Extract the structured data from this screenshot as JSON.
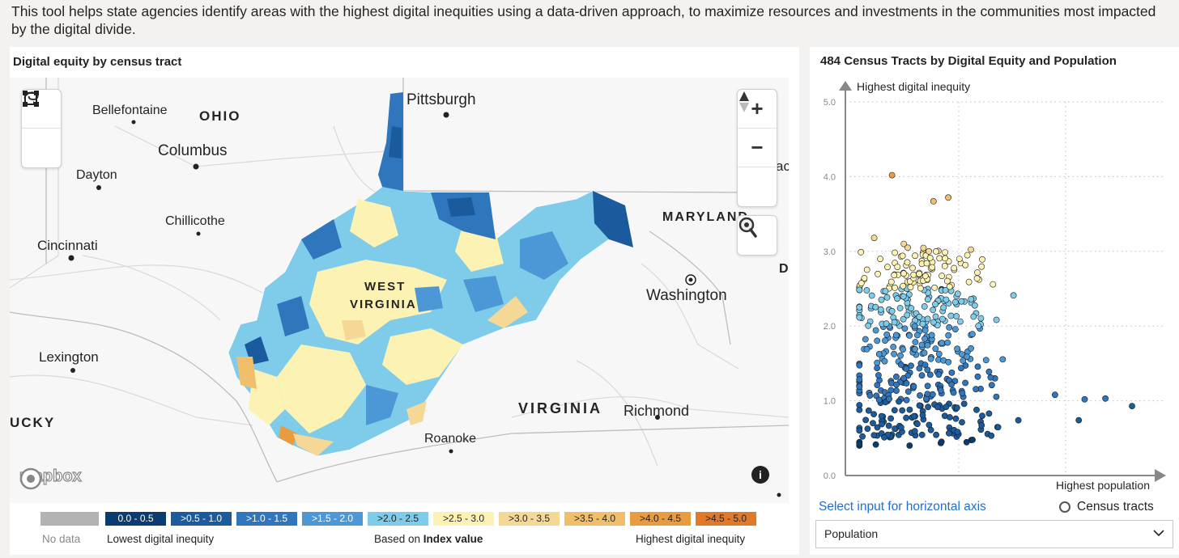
{
  "intro_text": "This tool helps state agencies identify areas with the highest digital inequities using a data-driven approach, to maximize resources and investments in the communities most impacted by the digital divide.",
  "map": {
    "title": "Digital equity by census tract",
    "places": {
      "bellefontaine": "Bellefontaine",
      "ohio": "OHIO",
      "columbus": "Columbus",
      "dayton": "Dayton",
      "chillicothe": "Chillicothe",
      "cincinnati": "Cincinnati",
      "lexington": "Lexington",
      "kentucky": "UCKY",
      "pittsburgh": "Pittsburgh",
      "maryland": "MARYLAND",
      "washington": "Washington",
      "west_virginia_1": "WEST",
      "west_virginia_2": "VIRGINIA",
      "virginia": "VIRGINIA",
      "richmond": "Richmond",
      "roanoke": "Roanoke",
      "de_partial": "D",
      "ac_partial": "ac"
    },
    "attribution": "mapbox",
    "controls": {
      "zoom_in": "+",
      "zoom_out": "−"
    },
    "legend": {
      "no_data": "No data",
      "bins": [
        {
          "label": "0.0 - 0.5",
          "color": "#0b3c70",
          "text": "#ffffff"
        },
        {
          "label": ">0.5 - 1.0",
          "color": "#1b5a9c",
          "text": "#ffffff"
        },
        {
          "label": ">1.0 - 1.5",
          "color": "#2f76bd",
          "text": "#ffffff"
        },
        {
          "label": ">1.5 - 2.0",
          "color": "#4c98d7",
          "text": "#ffffff"
        },
        {
          "label": ">2.0 - 2.5",
          "color": "#7fcbea",
          "text": "#252423"
        },
        {
          "label": ">2.5 - 3.0",
          "color": "#fcf2b3",
          "text": "#252423"
        },
        {
          "label": ">3.0 - 3.5",
          "color": "#f6d896",
          "text": "#252423"
        },
        {
          "label": ">3.5 - 4.0",
          "color": "#f0bf6c",
          "text": "#252423"
        },
        {
          "label": ">4.0 - 4.5",
          "color": "#e99b40",
          "text": "#252423"
        },
        {
          "label": ">4.5 - 5.0",
          "color": "#e0792a",
          "text": "#252423"
        }
      ],
      "lowest": "Lowest digital inequity",
      "based_on_prefix": "Based on ",
      "based_on_field": "Index value",
      "highest": "Highest digital inequity"
    }
  },
  "chart": {
    "title": "484 Census Tracts by Digital Equity and Population",
    "y_axis_label": "Highest digital inequity",
    "x_axis_label": "Highest population",
    "select_label": "Select input for horizontal axis",
    "tracts_toggle": "Census tracts",
    "dropdown_value": "Population"
  },
  "chart_data": {
    "type": "scatter",
    "title": "484 Census Tracts by Digital Equity and Population",
    "xlabel": "Highest population",
    "ylabel": "Highest digital inequity",
    "ylim": [
      0,
      5
    ],
    "yticks": [
      "0.0",
      "1.0",
      "2.0",
      "3.0",
      "4.0",
      "5.0"
    ],
    "grid": true,
    "count": 484,
    "highlight_points": [
      {
        "x": 0.13,
        "y": 4.02
      },
      {
        "x": 0.27,
        "y": 3.67
      },
      {
        "x": 0.32,
        "y": 3.72
      },
      {
        "x": 0.07,
        "y": 3.18
      },
      {
        "x": 0.94,
        "y": 0.93
      },
      {
        "x": 0.85,
        "y": 1.03
      },
      {
        "x": 0.78,
        "y": 1.02
      },
      {
        "x": 0.68,
        "y": 1.08
      },
      {
        "x": 0.76,
        "y": 0.74
      },
      {
        "x": 0.54,
        "y": 2.41
      }
    ]
  }
}
